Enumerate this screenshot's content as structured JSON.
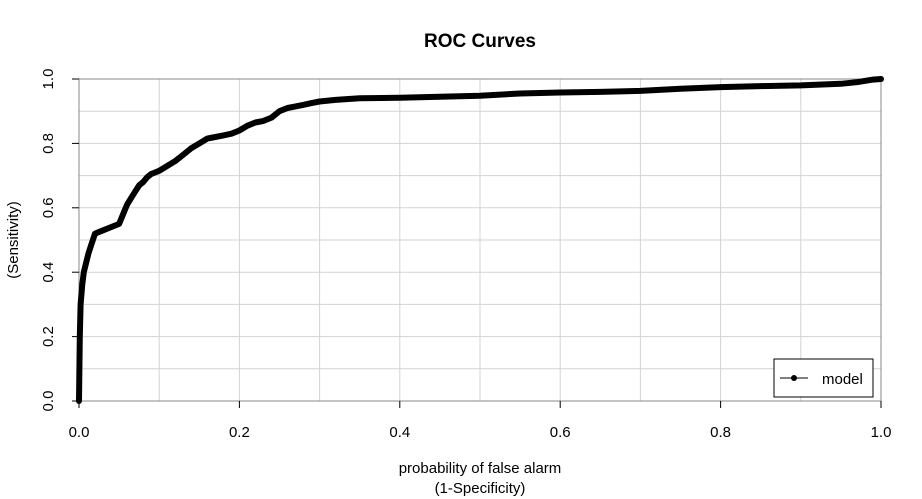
{
  "chart_data": {
    "type": "line",
    "title": "ROC Curves",
    "xlabel_line1": "probability of false alarm",
    "xlabel_line2": "(1-Specificity)",
    "ylabel_line1": "(Sensitivity)",
    "ylabel_line2": "",
    "xlim": [
      0,
      1
    ],
    "ylim": [
      0,
      1
    ],
    "x_ticks": [
      "0.0",
      "0.2",
      "0.4",
      "0.6",
      "0.8",
      "1.0"
    ],
    "y_ticks": [
      "0.0",
      "0.2",
      "0.4",
      "0.6",
      "0.8",
      "1.0"
    ],
    "grid": true,
    "legend_position": "bottom-right",
    "series": [
      {
        "name": "model",
        "color": "#000000",
        "x": [
          0.0,
          0.001,
          0.002,
          0.004,
          0.006,
          0.009,
          0.012,
          0.016,
          0.02,
          0.03,
          0.04,
          0.05,
          0.055,
          0.06,
          0.065,
          0.07,
          0.075,
          0.08,
          0.085,
          0.09,
          0.1,
          0.11,
          0.12,
          0.13,
          0.14,
          0.15,
          0.16,
          0.17,
          0.18,
          0.19,
          0.2,
          0.21,
          0.22,
          0.23,
          0.24,
          0.25,
          0.26,
          0.27,
          0.28,
          0.29,
          0.3,
          0.32,
          0.35,
          0.4,
          0.45,
          0.5,
          0.55,
          0.6,
          0.65,
          0.7,
          0.75,
          0.8,
          0.85,
          0.9,
          0.95,
          0.97,
          0.99,
          1.0
        ],
        "y": [
          0.0,
          0.2,
          0.3,
          0.36,
          0.4,
          0.43,
          0.46,
          0.49,
          0.52,
          0.53,
          0.54,
          0.55,
          0.58,
          0.61,
          0.63,
          0.65,
          0.67,
          0.68,
          0.695,
          0.705,
          0.715,
          0.73,
          0.745,
          0.765,
          0.785,
          0.8,
          0.815,
          0.82,
          0.825,
          0.83,
          0.84,
          0.855,
          0.865,
          0.87,
          0.88,
          0.9,
          0.91,
          0.915,
          0.92,
          0.925,
          0.93,
          0.935,
          0.94,
          0.942,
          0.945,
          0.948,
          0.955,
          0.958,
          0.96,
          0.963,
          0.97,
          0.975,
          0.978,
          0.98,
          0.985,
          0.99,
          0.998,
          1.0
        ]
      }
    ]
  }
}
